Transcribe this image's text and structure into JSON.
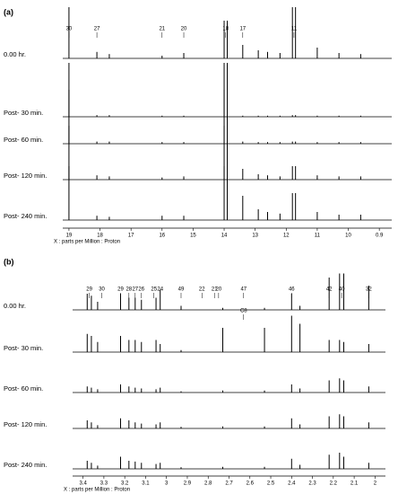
{
  "chart_data": [
    {
      "type": "line",
      "title": "(a)",
      "xlabel": "X : parts per Million : Proton",
      "xlim": [
        1.92,
        0.86
      ],
      "xticks": [
        {
          "value": 1.9,
          "label": "19"
        },
        {
          "value": 1.8,
          "label": "18"
        },
        {
          "value": 1.7,
          "label": "17"
        },
        {
          "value": 1.6,
          "label": "16"
        },
        {
          "value": 1.5,
          "label": "15"
        },
        {
          "value": 1.4,
          "label": "14"
        },
        {
          "value": 1.3,
          "label": "13"
        },
        {
          "value": 1.2,
          "label": "12"
        },
        {
          "value": 1.1,
          "label": "11"
        },
        {
          "value": 1.0,
          "label": "10"
        },
        0.9
      ],
      "ylim": [
        0,
        100
      ],
      "peak_labels": [
        {
          "label": "30",
          "x": 1.9
        },
        {
          "label": "27",
          "x": 1.81
        },
        {
          "label": "21",
          "x": 1.6
        },
        {
          "label": "20",
          "x": 1.53
        },
        {
          "label": "18",
          "x": 1.395
        },
        {
          "label": "17",
          "x": 1.34
        },
        {
          "label": "11",
          "x": 1.175
        }
      ],
      "x": [
        1.9,
        1.81,
        1.77,
        1.6,
        1.53,
        1.4,
        1.39,
        1.34,
        1.29,
        1.26,
        1.22,
        1.18,
        1.17,
        1.1,
        1.03,
        0.96
      ],
      "series": [
        {
          "name": "0.00 hr.",
          "color": "#000000",
          "values": [
            95,
            12,
            8,
            5,
            10,
            70,
            70,
            25,
            15,
            12,
            10,
            95,
            95,
            20,
            10,
            8
          ]
        },
        {
          "name": "Post- 30 min.",
          "color": "#000000",
          "values": [
            100,
            3,
            3,
            2,
            2,
            100,
            100,
            2,
            2,
            2,
            2,
            3,
            3,
            2,
            2,
            2
          ]
        },
        {
          "name": "Post- 60 min.",
          "color": "#000000",
          "values": [
            100,
            4,
            4,
            3,
            3,
            100,
            100,
            4,
            3,
            3,
            3,
            4,
            4,
            3,
            3,
            3
          ]
        },
        {
          "name": "Post- 120 min.",
          "color": "#000000",
          "values": [
            100,
            8,
            6,
            4,
            6,
            100,
            100,
            20,
            10,
            8,
            6,
            25,
            25,
            8,
            6,
            6
          ]
        },
        {
          "name": "Post- 240 min.",
          "color": "#000000",
          "values": [
            100,
            8,
            6,
            8,
            8,
            100,
            100,
            45,
            20,
            15,
            12,
            50,
            50,
            15,
            10,
            10
          ]
        }
      ]
    },
    {
      "type": "line",
      "title": "(b)",
      "xlabel": "X : parts per Million : Proton",
      "xlim": [
        3.45,
        1.95
      ],
      "xticks": [
        3.4,
        3.3,
        3.2,
        3.1,
        3,
        2.9,
        2.8,
        2.7,
        2.6,
        2.5,
        2.4,
        2.3,
        2.2,
        2.1,
        2
      ],
      "ylim": [
        0,
        100
      ],
      "peak_labels": [
        {
          "label": "29",
          "x": 3.37
        },
        {
          "label": "30",
          "x": 3.31
        },
        {
          "label": "29",
          "x": 3.22
        },
        {
          "label": "28",
          "x": 3.18
        },
        {
          "label": "27",
          "x": 3.15
        },
        {
          "label": "26",
          "x": 3.12
        },
        {
          "label": "25",
          "x": 3.06
        },
        {
          "label": "24",
          "x": 3.03
        },
        {
          "label": "49",
          "x": 2.93
        },
        {
          "label": "22",
          "x": 2.83
        },
        {
          "label": "21",
          "x": 2.77
        },
        {
          "label": "20",
          "x": 2.75
        },
        {
          "label": "47",
          "x": 2.63
        },
        {
          "label": "46",
          "x": 2.4
        },
        {
          "label": "42",
          "x": 2.22
        },
        {
          "label": "40",
          "x": 2.16
        },
        {
          "label": "32",
          "x": 2.03
        }
      ],
      "annotation": {
        "label": "C8",
        "x": 2.63
      },
      "x": [
        3.38,
        3.36,
        3.33,
        3.22,
        3.18,
        3.15,
        3.12,
        3.05,
        3.03,
        2.93,
        2.73,
        2.53,
        2.4,
        2.36,
        2.22,
        2.17,
        2.15,
        2.03
      ],
      "series": [
        {
          "name": "0.00 hr.",
          "color": "#000000",
          "values": [
            40,
            35,
            20,
            40,
            30,
            30,
            25,
            30,
            50,
            10,
            5,
            5,
            40,
            10,
            80,
            90,
            90,
            60
          ]
        },
        {
          "name": "Post- 30 min.",
          "color": "#000000",
          "values": [
            45,
            40,
            25,
            40,
            30,
            30,
            25,
            30,
            20,
            5,
            60,
            60,
            90,
            70,
            30,
            30,
            25,
            20
          ]
        },
        {
          "name": "Post- 60 min.",
          "color": "#000000",
          "values": [
            15,
            12,
            8,
            20,
            15,
            12,
            10,
            8,
            12,
            3,
            5,
            5,
            20,
            10,
            30,
            35,
            30,
            15
          ]
        },
        {
          "name": "Post- 120 min.",
          "color": "#000000",
          "values": [
            20,
            15,
            8,
            25,
            20,
            15,
            12,
            10,
            15,
            4,
            5,
            5,
            25,
            10,
            30,
            35,
            30,
            15
          ]
        },
        {
          "name": "Post- 240 min.",
          "color": "#000000",
          "values": [
            20,
            15,
            8,
            30,
            20,
            18,
            15,
            12,
            15,
            4,
            5,
            5,
            25,
            10,
            35,
            40,
            30,
            15
          ]
        }
      ]
    }
  ]
}
